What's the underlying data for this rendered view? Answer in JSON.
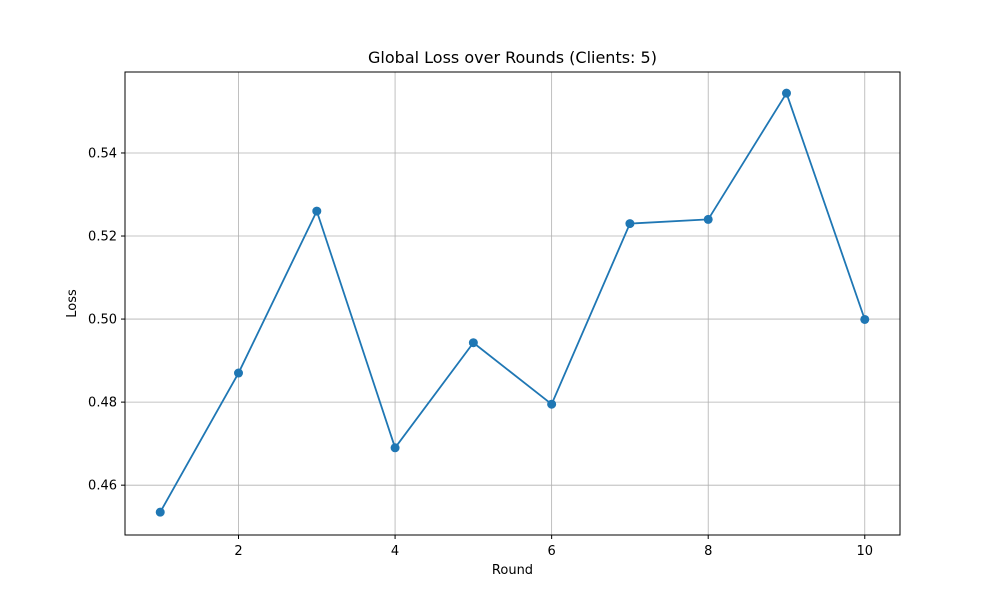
{
  "chart_data": {
    "type": "line",
    "title": "Global Loss over Rounds (Clients: 5)",
    "xlabel": "Round",
    "ylabel": "Loss",
    "x": [
      1,
      2,
      3,
      4,
      5,
      6,
      7,
      8,
      9,
      10
    ],
    "series": [
      {
        "values": [
          0.4535,
          0.487,
          0.526,
          0.469,
          0.4943,
          0.4795,
          0.523,
          0.524,
          0.5544,
          0.4999
        ],
        "color": "#1f77b4",
        "marker": "circle"
      }
    ],
    "xlim": [
      0.55,
      10.45
    ],
    "ylim": [
      0.448,
      0.5595
    ],
    "xticks": [
      2,
      4,
      6,
      8,
      10
    ],
    "xtick_labels": [
      "2",
      "4",
      "6",
      "8",
      "10"
    ],
    "yticks": [
      0.46,
      0.48,
      0.5,
      0.52,
      0.54
    ],
    "ytick_labels": [
      "0.46",
      "0.48",
      "0.50",
      "0.52",
      "0.54"
    ],
    "grid": true,
    "colors": {
      "line": "#1f77b4",
      "grid": "#b0b0b0",
      "axes": "#000000",
      "background": "#ffffff"
    }
  }
}
